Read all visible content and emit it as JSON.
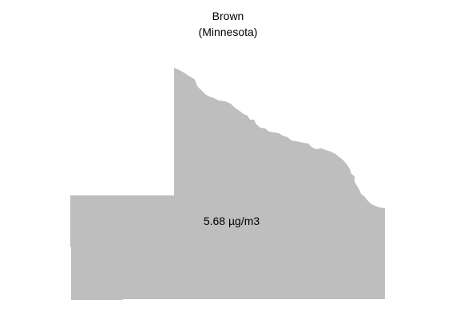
{
  "map": {
    "title": "Brown",
    "subtitle": "(Minnesota)",
    "value_label": "5.68 µg/m3",
    "fill_color": "#bebebe",
    "background_color": "#ffffff"
  }
}
